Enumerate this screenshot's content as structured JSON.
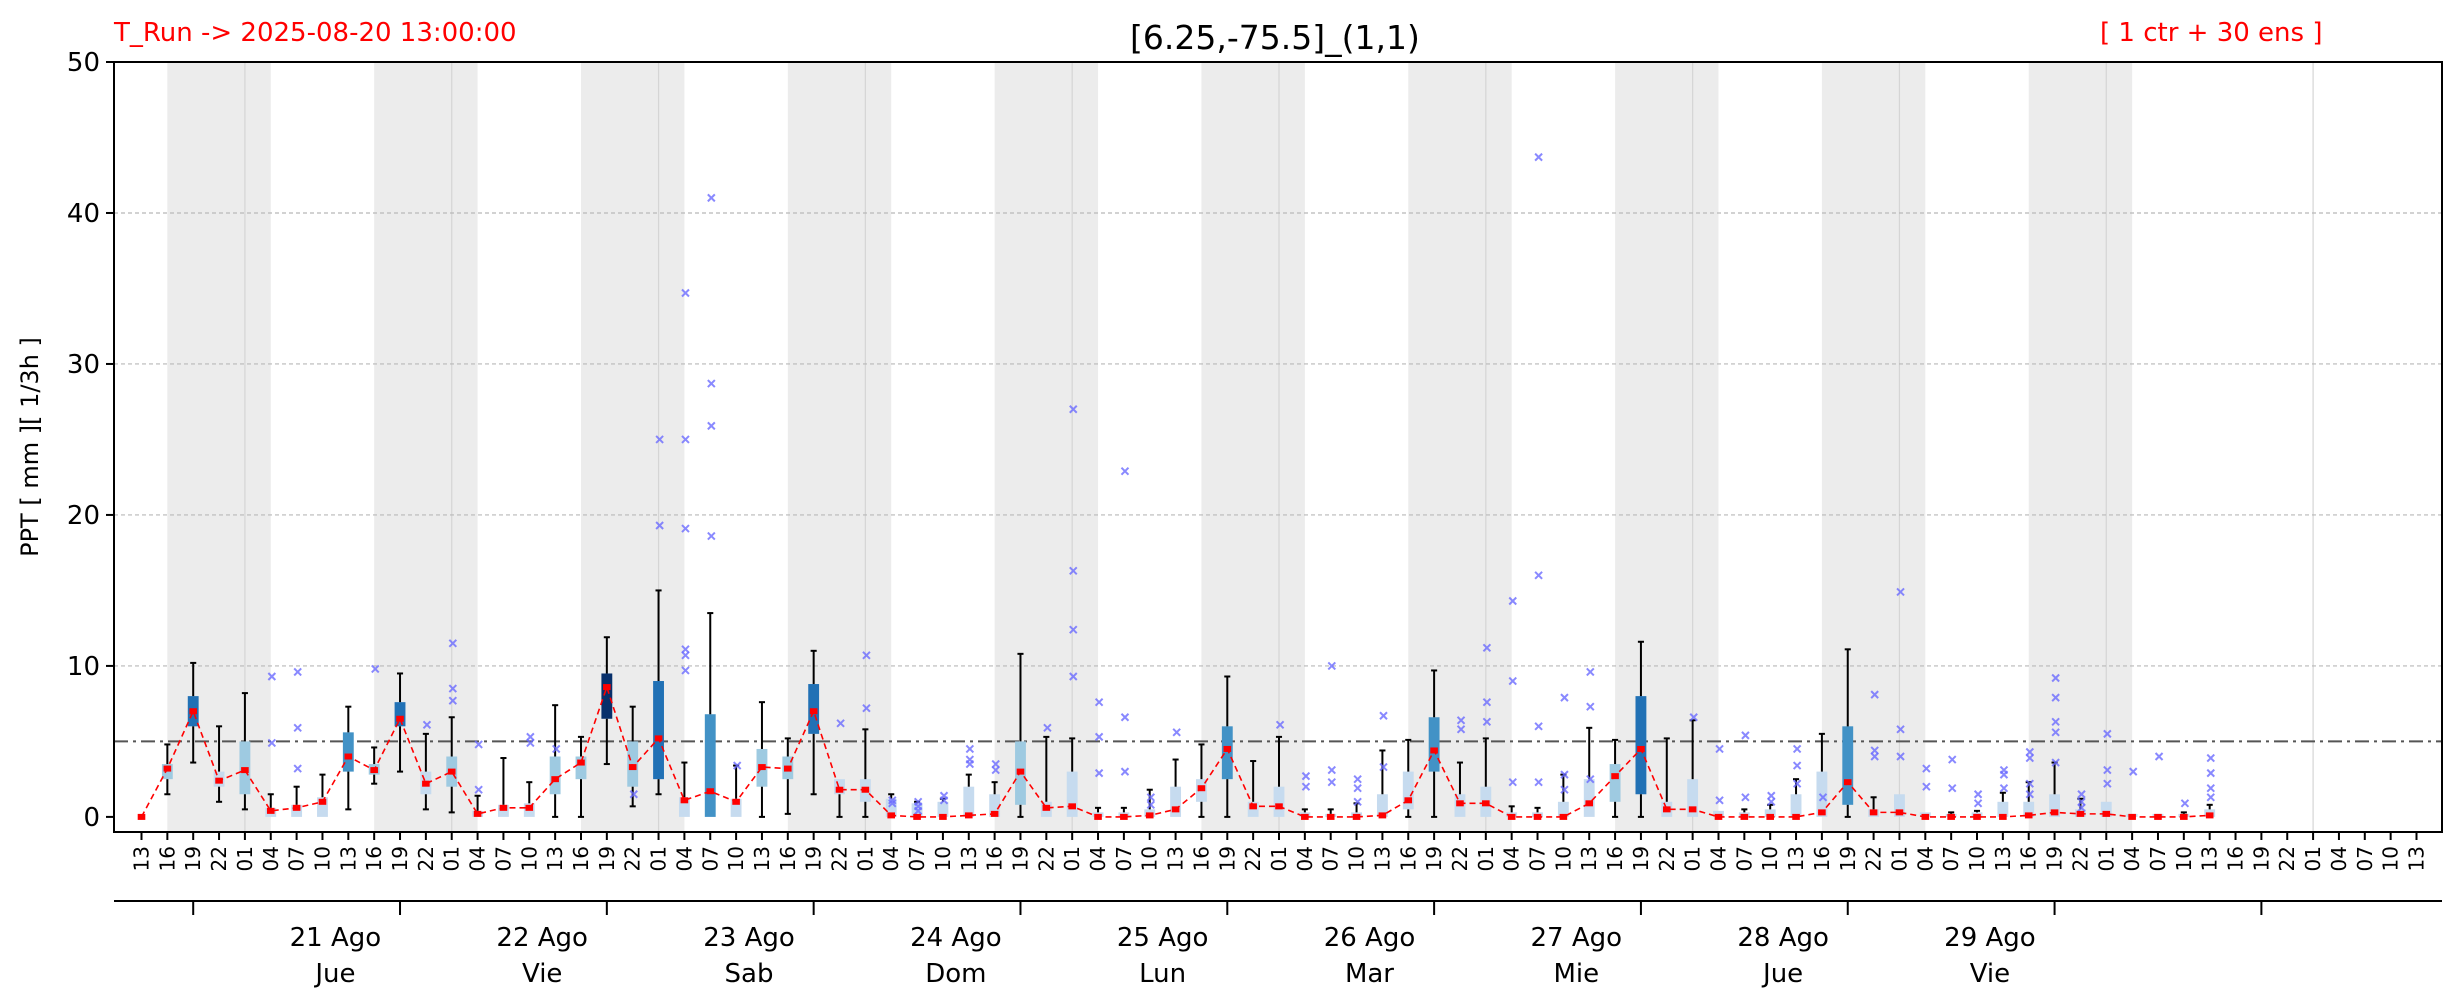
{
  "header": {
    "run_label": "T_Run -> 2025-08-20  13:00:00",
    "title": "[6.25,-75.5]_(1,1)",
    "ensemble_label": "[ 1 ctr + 30 ens ]"
  },
  "colors": {
    "background": "#ffffff",
    "night_shade": "#ececec",
    "median_line": "#ff0000",
    "whisker": "#000000",
    "outlier": "#6b6bff",
    "threshold": "#555555",
    "grid": "#b8b8b8",
    "box_light": "#c6dbef",
    "box_mid": "#9ecae1",
    "box_blue": "#4292c6",
    "box_dark": "#2171b5",
    "box_navy": "#08306b"
  },
  "chart_data": {
    "type": "box",
    "title": "[6.25,-75.5]_(1,1)",
    "ylabel": "PPT  [ mm ][ 1/3h ]",
    "ylim": [
      -1,
      50
    ],
    "yticks": [
      0,
      10,
      20,
      30,
      40,
      50
    ],
    "threshold": 5,
    "grid": true,
    "x_hour_labels": [
      "13",
      "16",
      "19",
      "22",
      "01",
      "04",
      "07",
      "10",
      "13",
      "16",
      "19",
      "22",
      "01",
      "04",
      "07",
      "10",
      "13",
      "16",
      "19",
      "22",
      "01",
      "04",
      "07",
      "10",
      "13",
      "16",
      "19",
      "22",
      "01",
      "04",
      "07",
      "10",
      "13",
      "16",
      "19",
      "22",
      "01",
      "04",
      "07",
      "10",
      "13",
      "16",
      "19",
      "22",
      "01",
      "04",
      "07",
      "10",
      "13",
      "16",
      "19",
      "22",
      "01",
      "04",
      "07",
      "10",
      "13",
      "16",
      "19",
      "22",
      "01",
      "04",
      "07",
      "10",
      "13",
      "16",
      "19",
      "22",
      "01",
      "04",
      "07",
      "10",
      "13",
      "16",
      "19",
      "22",
      "01",
      "04",
      "07",
      "10",
      "13",
      "16",
      "19",
      "22",
      "01",
      "04",
      "07",
      "10",
      "13"
    ],
    "day_groups": [
      {
        "date": "21 Ago",
        "weekday": "Jue"
      },
      {
        "date": "22 Ago",
        "weekday": "Vie"
      },
      {
        "date": "23 Ago",
        "weekday": "Sab"
      },
      {
        "date": "24 Ago",
        "weekday": "Dom"
      },
      {
        "date": "25 Ago",
        "weekday": "Lun"
      },
      {
        "date": "26 Ago",
        "weekday": "Mar"
      },
      {
        "date": "27 Ago",
        "weekday": "Mie"
      },
      {
        "date": "28 Ago",
        "weekday": "Jue"
      },
      {
        "date": "29 Ago",
        "weekday": "Vie"
      }
    ],
    "medians": [
      0,
      3.2,
      7,
      2.4,
      3.1,
      0.4,
      0.6,
      1,
      4,
      3.1,
      6.5,
      2.2,
      3,
      0.2,
      0.6,
      0.6,
      2.5,
      3.6,
      8.6,
      3.3,
      5.2,
      1.1,
      1.7,
      1,
      3.3,
      3.2,
      7,
      1.8,
      1.8,
      0.1,
      0,
      0,
      0.1,
      0.2,
      3,
      0.6,
      0.7,
      0,
      0,
      0.1,
      0.5,
      1.9,
      4.5,
      0.7,
      0.7,
      0,
      0,
      0,
      0.1,
      1.1,
      4.4,
      0.9,
      0.9,
      0,
      0,
      0,
      0.9,
      2.7,
      4.5,
      0.5,
      0.5,
      0,
      0,
      0,
      0,
      0.3,
      2.3,
      0.3,
      0.3,
      0,
      0,
      0,
      0,
      0.1,
      0.3,
      0.2,
      0.2,
      0,
      0,
      0,
      0.1
    ],
    "q1": [
      0,
      2.5,
      6,
      2,
      1.5,
      0,
      0,
      0,
      3,
      2.8,
      6,
      1.5,
      2,
      0,
      0,
      0,
      1.5,
      2.5,
      6.5,
      2,
      2.5,
      0,
      0,
      0,
      2,
      2.5,
      5.5,
      1.5,
      1,
      0,
      0,
      0,
      0,
      0,
      0.8,
      0,
      0,
      0,
      0,
      0,
      0,
      1,
      2.5,
      0,
      0,
      0,
      0,
      0,
      0,
      0.5,
      3,
      0,
      0,
      0,
      0,
      0,
      0,
      1,
      1.5,
      0,
      0,
      0,
      0,
      0,
      0,
      0,
      0.8,
      0,
      0,
      0,
      0,
      0,
      0,
      0,
      0,
      0,
      0,
      0,
      0,
      0,
      0
    ],
    "q3": [
      0,
      3.5,
      8,
      3,
      5,
      0.6,
      0.8,
      1.3,
      5.6,
      3.5,
      7.6,
      3,
      4,
      0.4,
      0.8,
      0.9,
      4,
      4,
      9.5,
      5,
      9,
      1.3,
      6.8,
      1.2,
      4.5,
      4,
      8.8,
      2.5,
      2.5,
      1.2,
      0.9,
      1,
      2,
      1.5,
      5,
      1,
      3,
      0.3,
      0.3,
      0.5,
      2,
      2.5,
      6,
      1,
      2,
      0.3,
      0.2,
      0.3,
      1.5,
      3,
      6.6,
      1.5,
      2,
      0.3,
      0.3,
      1,
      2.5,
      3.5,
      8,
      1,
      2.5,
      0.4,
      0.3,
      0.5,
      1.5,
      3,
      6,
      0.5,
      1.5,
      0.3,
      0.2,
      0.3,
      1,
      1,
      1.5,
      0.5,
      1,
      0.2,
      0.2,
      0.2,
      0.5
    ],
    "whisker_low": [
      0,
      1.5,
      3.6,
      1,
      0.5,
      0,
      0,
      0,
      0.5,
      2.2,
      3,
      0.5,
      0.3,
      0,
      0,
      0,
      0,
      0,
      3.5,
      0.7,
      1.5,
      0,
      0,
      0,
      0,
      0.2,
      1.5,
      0,
      0,
      0,
      0,
      0,
      0,
      0,
      0,
      0,
      0,
      0,
      0,
      0,
      0,
      0,
      0,
      0,
      0,
      0,
      0,
      0,
      0,
      0,
      0,
      0,
      0,
      0,
      0,
      0,
      0,
      0,
      0,
      0,
      0,
      0,
      0,
      0,
      0,
      0,
      0,
      0,
      0,
      0,
      0,
      0,
      0,
      0,
      0,
      0,
      0,
      0,
      0,
      0,
      0
    ],
    "whisker_high": [
      0,
      4.8,
      10.2,
      6,
      8.2,
      1.5,
      2,
      2.8,
      7.3,
      4.6,
      9.5,
      5.5,
      6.6,
      1.4,
      3.9,
      2.3,
      7.4,
      5.3,
      11.9,
      7.3,
      15,
      3.6,
      13.5,
      3.4,
      7.6,
      5.2,
      11,
      2.5,
      5.8,
      1.5,
      1,
      1.2,
      2.8,
      2.3,
      10.8,
      5.3,
      5.2,
      0.6,
      0.6,
      1.8,
      3.8,
      4.8,
      9.3,
      3.7,
      5.3,
      0.5,
      0.5,
      0.9,
      4.4,
      5.1,
      9.7,
      3.6,
      5.2,
      0.7,
      0.6,
      2.8,
      5.9,
      5.1,
      11.6,
      5.2,
      6.4,
      0.4,
      0.5,
      0.8,
      2.5,
      5.5,
      11.1,
      1.3,
      1.5,
      0.3,
      0.3,
      0.4,
      1.6,
      2.3,
      3.6,
      1.2,
      0.6,
      0.2,
      0.2,
      0.3,
      0.8
    ],
    "outliers": [
      [
        5,
        9.3
      ],
      [
        5,
        4.9
      ],
      [
        6,
        9.6
      ],
      [
        6,
        5.9
      ],
      [
        6,
        3.2
      ],
      [
        9,
        9.8
      ],
      [
        11,
        6.1
      ],
      [
        12,
        11.5
      ],
      [
        12,
        8.5
      ],
      [
        12,
        7.7
      ],
      [
        13,
        4.8
      ],
      [
        13,
        1.8
      ],
      [
        15,
        5.3
      ],
      [
        15,
        4.9
      ],
      [
        16,
        4.5
      ],
      [
        19,
        1.5
      ],
      [
        20,
        25
      ],
      [
        20,
        19.3
      ],
      [
        21,
        34.7
      ],
      [
        21,
        25
      ],
      [
        21,
        19.1
      ],
      [
        21,
        11.1
      ],
      [
        21,
        10.7
      ],
      [
        21,
        9.7
      ],
      [
        22,
        41
      ],
      [
        22,
        28.7
      ],
      [
        22,
        25.9
      ],
      [
        22,
        18.6
      ],
      [
        23,
        3.4
      ],
      [
        27,
        6.2
      ],
      [
        28,
        10.7
      ],
      [
        28,
        7.2
      ],
      [
        29,
        1.1
      ],
      [
        29,
        0.9
      ],
      [
        30,
        1
      ],
      [
        30,
        0.7
      ],
      [
        30,
        0.4
      ],
      [
        31,
        1.4
      ],
      [
        31,
        1.1
      ],
      [
        32,
        4.5
      ],
      [
        32,
        3.8
      ],
      [
        32,
        3.5
      ],
      [
        33,
        3.5
      ],
      [
        33,
        3.1
      ],
      [
        35,
        5.9
      ],
      [
        36,
        27
      ],
      [
        36,
        16.3
      ],
      [
        36,
        12.4
      ],
      [
        36,
        9.3
      ],
      [
        37,
        7.6
      ],
      [
        37,
        5.3
      ],
      [
        37,
        2.9
      ],
      [
        38,
        22.9
      ],
      [
        38,
        6.6
      ],
      [
        38,
        3
      ],
      [
        39,
        1.3
      ],
      [
        39,
        0.8
      ],
      [
        40,
        5.6
      ],
      [
        44,
        6.1
      ],
      [
        45,
        2.7
      ],
      [
        45,
        2
      ],
      [
        46,
        10
      ],
      [
        46,
        3.1
      ],
      [
        46,
        2.3
      ],
      [
        47,
        2.5
      ],
      [
        47,
        1.9
      ],
      [
        47,
        1
      ],
      [
        48,
        6.7
      ],
      [
        48,
        3.3
      ],
      [
        51,
        6.4
      ],
      [
        51,
        5.8
      ],
      [
        52,
        11.2
      ],
      [
        52,
        7.6
      ],
      [
        52,
        6.3
      ],
      [
        53,
        14.3
      ],
      [
        53,
        9
      ],
      [
        53,
        2.3
      ],
      [
        54,
        43.7
      ],
      [
        54,
        16
      ],
      [
        54,
        6
      ],
      [
        54,
        2.3
      ],
      [
        55,
        7.9
      ],
      [
        55,
        2.8
      ],
      [
        55,
        1.8
      ],
      [
        56,
        9.6
      ],
      [
        56,
        7.3
      ],
      [
        56,
        2.5
      ],
      [
        60,
        6.6
      ],
      [
        61,
        4.5
      ],
      [
        61,
        1.1
      ],
      [
        62,
        5.4
      ],
      [
        62,
        1.3
      ],
      [
        63,
        1.4
      ],
      [
        63,
        1
      ],
      [
        64,
        4.5
      ],
      [
        64,
        3.4
      ],
      [
        64,
        2.2
      ],
      [
        65,
        1.3
      ],
      [
        67,
        8.1
      ],
      [
        67,
        4.4
      ],
      [
        67,
        4
      ],
      [
        68,
        14.9
      ],
      [
        68,
        5.8
      ],
      [
        68,
        4
      ],
      [
        69,
        3.2
      ],
      [
        69,
        2
      ],
      [
        70,
        3.8
      ],
      [
        70,
        1.9
      ],
      [
        71,
        1.5
      ],
      [
        71,
        0.9
      ],
      [
        72,
        3.1
      ],
      [
        72,
        2.8
      ],
      [
        72,
        1.9
      ],
      [
        73,
        4.3
      ],
      [
        73,
        3.9
      ],
      [
        73,
        2.2
      ],
      [
        73,
        1.5
      ],
      [
        74,
        9.2
      ],
      [
        74,
        7.9
      ],
      [
        74,
        6.3
      ],
      [
        74,
        5.6
      ],
      [
        74,
        3.6
      ],
      [
        75,
        1.5
      ],
      [
        75,
        1
      ],
      [
        75,
        0.6
      ],
      [
        76,
        5.5
      ],
      [
        76,
        3.1
      ],
      [
        76,
        2.2
      ],
      [
        77,
        3
      ],
      [
        78,
        4
      ],
      [
        79,
        0.9
      ],
      [
        80,
        3.9
      ],
      [
        80,
        2.9
      ],
      [
        80,
        1.9
      ],
      [
        80,
        1.3
      ]
    ]
  }
}
